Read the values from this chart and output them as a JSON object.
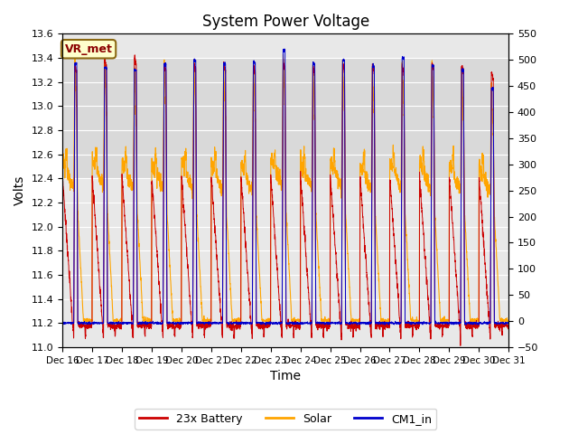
{
  "title": "System Power Voltage",
  "xlabel": "Time",
  "ylabel_left": "Volts",
  "ylim_left": [
    11.0,
    13.6
  ],
  "ylim_right": [
    -50,
    550
  ],
  "yticks_left": [
    11.0,
    11.2,
    11.4,
    11.6,
    11.8,
    12.0,
    12.2,
    12.4,
    12.6,
    12.8,
    13.0,
    13.2,
    13.4,
    13.6
  ],
  "yticks_right": [
    -50,
    0,
    50,
    100,
    150,
    200,
    250,
    300,
    350,
    400,
    450,
    500,
    550
  ],
  "x_labels": [
    "Dec 16",
    "Dec 17",
    "Dec 18",
    "Dec 19",
    "Dec 20",
    "Dec 21",
    "Dec 22",
    "Dec 23",
    "Dec 24",
    "Dec 25",
    "Dec 26",
    "Dec 27",
    "Dec 28",
    "Dec 29",
    "Dec 30",
    "Dec 31"
  ],
  "annotation_text": "VR_met",
  "color_battery": "#CC0000",
  "color_solar": "#FFA500",
  "color_cm1": "#0000CC",
  "legend_labels": [
    "23x Battery",
    "Solar",
    "CM1_in"
  ],
  "plot_bg_color": "#E8E8E8",
  "shaded_band": [
    12.4,
    13.4
  ],
  "shaded_color": "#D0D0D0"
}
